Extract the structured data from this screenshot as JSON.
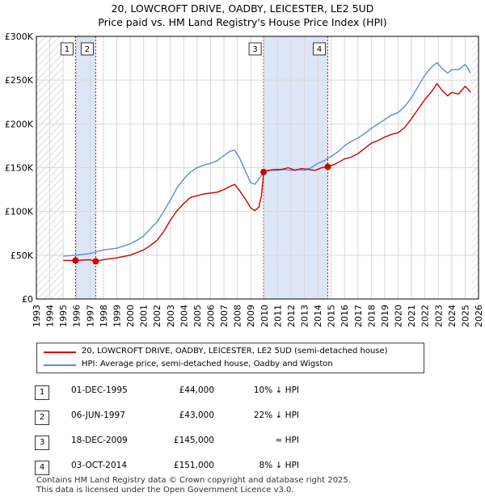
{
  "title": "20, LOWCROFT DRIVE, OADBY, LEICESTER, LE2 5UD",
  "subtitle": "Price paid vs. HM Land Registry's House Price Index (HPI)",
  "colors": {
    "price_line": "#cc0000",
    "hpi_line": "#5b8ed0",
    "shade": "#dde6f6",
    "grid": "#d8d8d8"
  },
  "chart_data": {
    "type": "line",
    "title": "20, LOWCROFT DRIVE, OADBY, LEICESTER, LE2 5UD",
    "subtitle": "Price paid vs. HM Land Registry's House Price Index (HPI)",
    "xlim": [
      1993,
      2026
    ],
    "ylim": [
      0,
      300000
    ],
    "x_ticks": [
      1993,
      1994,
      1995,
      1996,
      1997,
      1998,
      1999,
      2000,
      2001,
      2002,
      2003,
      2004,
      2005,
      2006,
      2007,
      2008,
      2009,
      2010,
      2011,
      2012,
      2013,
      2014,
      2015,
      2016,
      2017,
      2018,
      2019,
      2020,
      2021,
      2022,
      2023,
      2024,
      2025,
      2026
    ],
    "y_ticks": [
      {
        "value": 0,
        "label": "£0"
      },
      {
        "value": 50000,
        "label": "£50K"
      },
      {
        "value": 100000,
        "label": "£100K"
      },
      {
        "value": 150000,
        "label": "£150K"
      },
      {
        "value": 200000,
        "label": "£200K"
      },
      {
        "value": 250000,
        "label": "£250K"
      },
      {
        "value": 300000,
        "label": "£300K"
      }
    ],
    "hatch_ranges": [
      [
        1993,
        1995.0
      ],
      [
        2025.5,
        2026
      ]
    ],
    "shaded_ranges": [
      [
        1995.92,
        1997.43
      ],
      [
        2009.96,
        2014.75
      ]
    ],
    "series": [
      {
        "name": "20, LOWCROFT DRIVE, OADBY, LEICESTER, LE2 5UD (semi-detached house)",
        "color": "#cc0000",
        "x": [
          1995.0,
          1995.92,
          1996.5,
          1997.0,
          1997.43,
          1998.0,
          1999.0,
          2000.0,
          2000.5,
          2001.0,
          2001.5,
          2002.0,
          2002.5,
          2003.0,
          2003.5,
          2004.0,
          2004.5,
          2005.0,
          2005.5,
          2006.0,
          2006.5,
          2007.0,
          2007.5,
          2007.8,
          2008.2,
          2008.6,
          2009.0,
          2009.3,
          2009.6,
          2009.8,
          2009.96,
          2010.3,
          2010.8,
          2011.3,
          2011.8,
          2012.3,
          2012.8,
          2013.3,
          2013.8,
          2014.3,
          2014.75,
          2015.3,
          2016.0,
          2016.5,
          2017.0,
          2017.5,
          2018.0,
          2018.5,
          2019.0,
          2019.5,
          2020.0,
          2020.5,
          2021.0,
          2021.5,
          2022.0,
          2022.5,
          2022.9,
          2023.3,
          2023.7,
          2024.0,
          2024.5,
          2025.0,
          2025.2,
          2025.4
        ],
        "y": [
          44000,
          44000,
          44500,
          44800,
          43000,
          45000,
          47000,
          50000,
          53000,
          56000,
          61000,
          67000,
          77000,
          90000,
          101000,
          109000,
          116000,
          118000,
          120000,
          121000,
          122000,
          125000,
          129000,
          131000,
          123000,
          114000,
          104000,
          101000,
          105000,
          118000,
          145000,
          147000,
          148000,
          148000,
          150000,
          147000,
          149000,
          148000,
          147000,
          150000,
          151000,
          154000,
          160000,
          162000,
          166000,
          172000,
          178000,
          181000,
          185000,
          188000,
          190000,
          196000,
          206000,
          217000,
          228000,
          237000,
          246000,
          238000,
          232000,
          236000,
          234000,
          243000,
          240000,
          236000
        ]
      },
      {
        "name": "HPI: Average price, semi-detached house, Oadby and Wigston",
        "color": "#5b8ed0",
        "x": [
          1995.0,
          1995.5,
          1996.0,
          1996.5,
          1997.0,
          1997.5,
          1998.0,
          1999.0,
          2000.0,
          2000.5,
          2001.0,
          2001.5,
          2002.0,
          2002.5,
          2003.0,
          2003.5,
          2004.0,
          2004.5,
          2005.0,
          2005.5,
          2006.0,
          2006.5,
          2007.0,
          2007.5,
          2007.8,
          2008.2,
          2008.6,
          2009.0,
          2009.3,
          2009.6,
          2010.0,
          2010.5,
          2011.0,
          2011.5,
          2012.0,
          2012.5,
          2013.0,
          2013.5,
          2014.0,
          2014.5,
          2015.0,
          2015.5,
          2016.0,
          2016.5,
          2017.0,
          2017.5,
          2018.0,
          2018.5,
          2019.0,
          2019.5,
          2020.0,
          2020.5,
          2021.0,
          2021.5,
          2022.0,
          2022.5,
          2022.9,
          2023.3,
          2023.7,
          2024.0,
          2024.5,
          2025.0,
          2025.2,
          2025.4
        ],
        "y": [
          49000,
          49500,
          50000,
          51000,
          52000,
          54000,
          56000,
          58000,
          63000,
          67000,
          72000,
          80000,
          88000,
          100000,
          113000,
          127000,
          137000,
          145000,
          150000,
          153000,
          155000,
          158000,
          164000,
          169000,
          170000,
          160000,
          146000,
          133000,
          131000,
          137000,
          146000,
          147000,
          147000,
          148000,
          147000,
          148000,
          147000,
          150000,
          155000,
          158000,
          163000,
          168000,
          175000,
          180000,
          184000,
          189000,
          195000,
          200000,
          205000,
          210000,
          213000,
          220000,
          230000,
          243000,
          256000,
          265000,
          270000,
          263000,
          258000,
          262000,
          262000,
          268000,
          264000,
          258000
        ]
      }
    ],
    "sales": [
      {
        "id": "1",
        "x": 1995.92,
        "y": 44000
      },
      {
        "id": "2",
        "x": 1997.43,
        "y": 43000
      },
      {
        "id": "3",
        "x": 2009.96,
        "y": 145000
      },
      {
        "id": "4",
        "x": 2014.75,
        "y": 151000
      }
    ]
  },
  "legend": [
    {
      "label": "20, LOWCROFT DRIVE, OADBY, LEICESTER, LE2 5UD (semi-detached house)",
      "color": "#cc0000"
    },
    {
      "label": "HPI: Average price, semi-detached house, Oadby and Wigston",
      "color": "#5b8ed0"
    }
  ],
  "transactions": [
    {
      "id": "1",
      "date": "01-DEC-1995",
      "price": "£44,000",
      "hpi": "10% ↓ HPI"
    },
    {
      "id": "2",
      "date": "06-JUN-1997",
      "price": "£43,000",
      "hpi": "22% ↓ HPI"
    },
    {
      "id": "3",
      "date": "18-DEC-2009",
      "price": "£145,000",
      "hpi": "≈ HPI"
    },
    {
      "id": "4",
      "date": "03-OCT-2014",
      "price": "£151,000",
      "hpi": "8% ↓ HPI"
    }
  ],
  "footer": {
    "line1": "Contains HM Land Registry data © Crown copyright and database right 2025.",
    "line2": "This data is licensed under the Open Government Licence v3.0."
  }
}
